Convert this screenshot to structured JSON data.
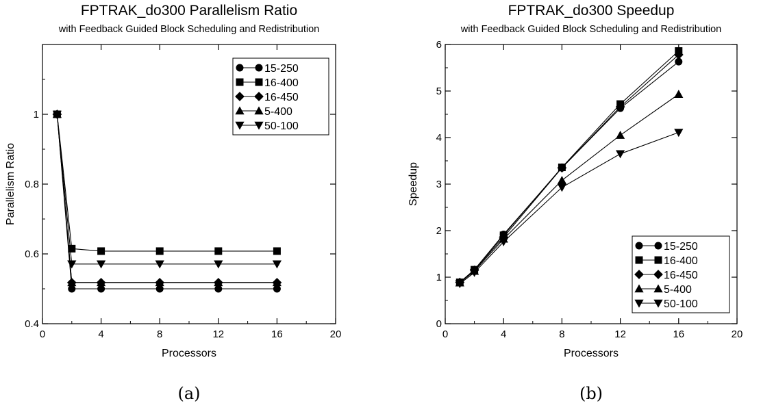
{
  "chart_data": [
    {
      "type": "line",
      "title": "FPTRAK_do300 Parallelism Ratio",
      "subtitle": "with Feedback Guided Block Scheduling and Redistribution",
      "xlabel": "Processors",
      "ylabel": "Parallelism Ratio",
      "caption": "(a)",
      "xlim": [
        0,
        20
      ],
      "ylim": [
        0.4,
        1.2
      ],
      "xticks": [
        0,
        4,
        8,
        12,
        16,
        20
      ],
      "yticks": [
        0.4,
        0.6,
        0.8,
        1
      ],
      "legend_position": "top-right",
      "x": [
        1,
        2,
        4,
        8,
        12,
        16
      ],
      "series": [
        {
          "name": "15-250",
          "marker": "circle",
          "values": [
            1,
            0.5,
            0.5,
            0.5,
            0.5,
            0.5
          ]
        },
        {
          "name": "16-400",
          "marker": "square",
          "values": [
            1,
            0.615,
            0.608,
            0.608,
            0.608,
            0.608
          ]
        },
        {
          "name": "16-450",
          "marker": "diamond",
          "values": [
            1,
            0.518,
            0.518,
            0.518,
            0.518,
            0.518
          ]
        },
        {
          "name": "5-400",
          "marker": "triangle-up",
          "values": [
            1,
            0.518,
            0.518,
            0.518,
            0.518,
            0.518
          ]
        },
        {
          "name": "50-100",
          "marker": "triangle-down",
          "values": [
            1,
            0.571,
            0.571,
            0.571,
            0.571,
            0.571
          ]
        }
      ]
    },
    {
      "type": "line",
      "title": "FPTRAK_do300 Speedup",
      "subtitle": "with Feedback Guided Block Scheduling and Redistribution",
      "xlabel": "Processors",
      "ylabel": "Speedup",
      "caption": "(b)",
      "xlim": [
        0,
        20
      ],
      "ylim": [
        0,
        6
      ],
      "xticks": [
        0,
        4,
        8,
        12,
        16,
        20
      ],
      "yticks": [
        0,
        1,
        2,
        3,
        4,
        5,
        6
      ],
      "legend_position": "bottom-right",
      "x": [
        1,
        2,
        4,
        8,
        12,
        16
      ],
      "series": [
        {
          "name": "15-250",
          "marker": "circle",
          "values": [
            0.89,
            1.16,
            1.92,
            3.35,
            4.63,
            5.63
          ]
        },
        {
          "name": "16-400",
          "marker": "square",
          "values": [
            0.89,
            1.16,
            1.9,
            3.36,
            4.72,
            5.86
          ]
        },
        {
          "name": "16-450",
          "marker": "diamond",
          "values": [
            0.89,
            1.15,
            1.86,
            3.35,
            4.66,
            5.78
          ]
        },
        {
          "name": "5-400",
          "marker": "triangle-up",
          "values": [
            0.88,
            1.13,
            1.82,
            3.08,
            4.05,
            4.93
          ]
        },
        {
          "name": "50-100",
          "marker": "triangle-down",
          "values": [
            0.86,
            1.1,
            1.76,
            2.93,
            3.65,
            4.11
          ]
        }
      ]
    }
  ]
}
